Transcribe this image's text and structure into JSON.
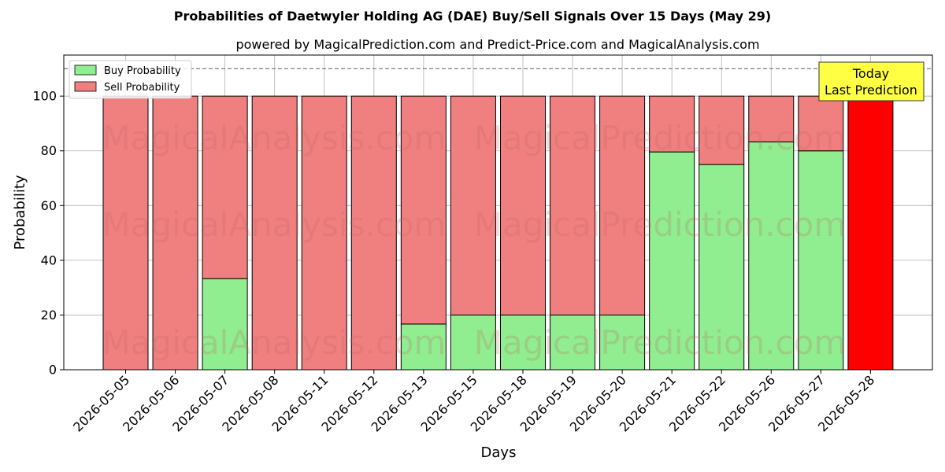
{
  "chart_data": {
    "type": "bar",
    "stacked": true,
    "title": "Probabilities of Daetwyler Holding AG (DAE) Buy/Sell Signals Over 15 Days (May 29)",
    "subtitle": "powered by MagicalPrediction.com and Predict-Price.com and MagicalAnalysis.com",
    "xlabel": "Days",
    "ylabel": "Probability",
    "ylim": [
      0,
      115
    ],
    "yticks": [
      0,
      20,
      40,
      60,
      80,
      100
    ],
    "grid": true,
    "legend_position": "top-left",
    "reference_line": 110,
    "categories": [
      "2026-05-05",
      "2026-05-06",
      "2026-05-07",
      "2026-05-08",
      "2026-05-11",
      "2026-05-12",
      "2026-05-13",
      "2026-05-15",
      "2026-05-18",
      "2026-05-19",
      "2026-05-20",
      "2026-05-21",
      "2026-05-22",
      "2026-05-26",
      "2026-05-27",
      "2026-05-28"
    ],
    "series": [
      {
        "name": "Buy Probability",
        "color": "#90ee90",
        "values": [
          0,
          0,
          33.3,
          0,
          0,
          0,
          16.7,
          20,
          20,
          20,
          20,
          79.6,
          75,
          83.3,
          80,
          0
        ]
      },
      {
        "name": "Sell Probability",
        "color": "#f08080",
        "values": [
          100,
          100,
          66.7,
          100,
          100,
          100,
          83.3,
          80,
          80,
          80,
          80,
          20.4,
          25,
          16.7,
          20,
          100
        ]
      }
    ],
    "highlight": {
      "index": 15,
      "color": "#ff0000"
    },
    "annotation": {
      "lines": [
        "Today",
        "Last Prediction"
      ],
      "background": "#ffff44"
    },
    "watermarks": [
      "MagicalAnalysis.com",
      "MagicalPrediction.com"
    ]
  }
}
